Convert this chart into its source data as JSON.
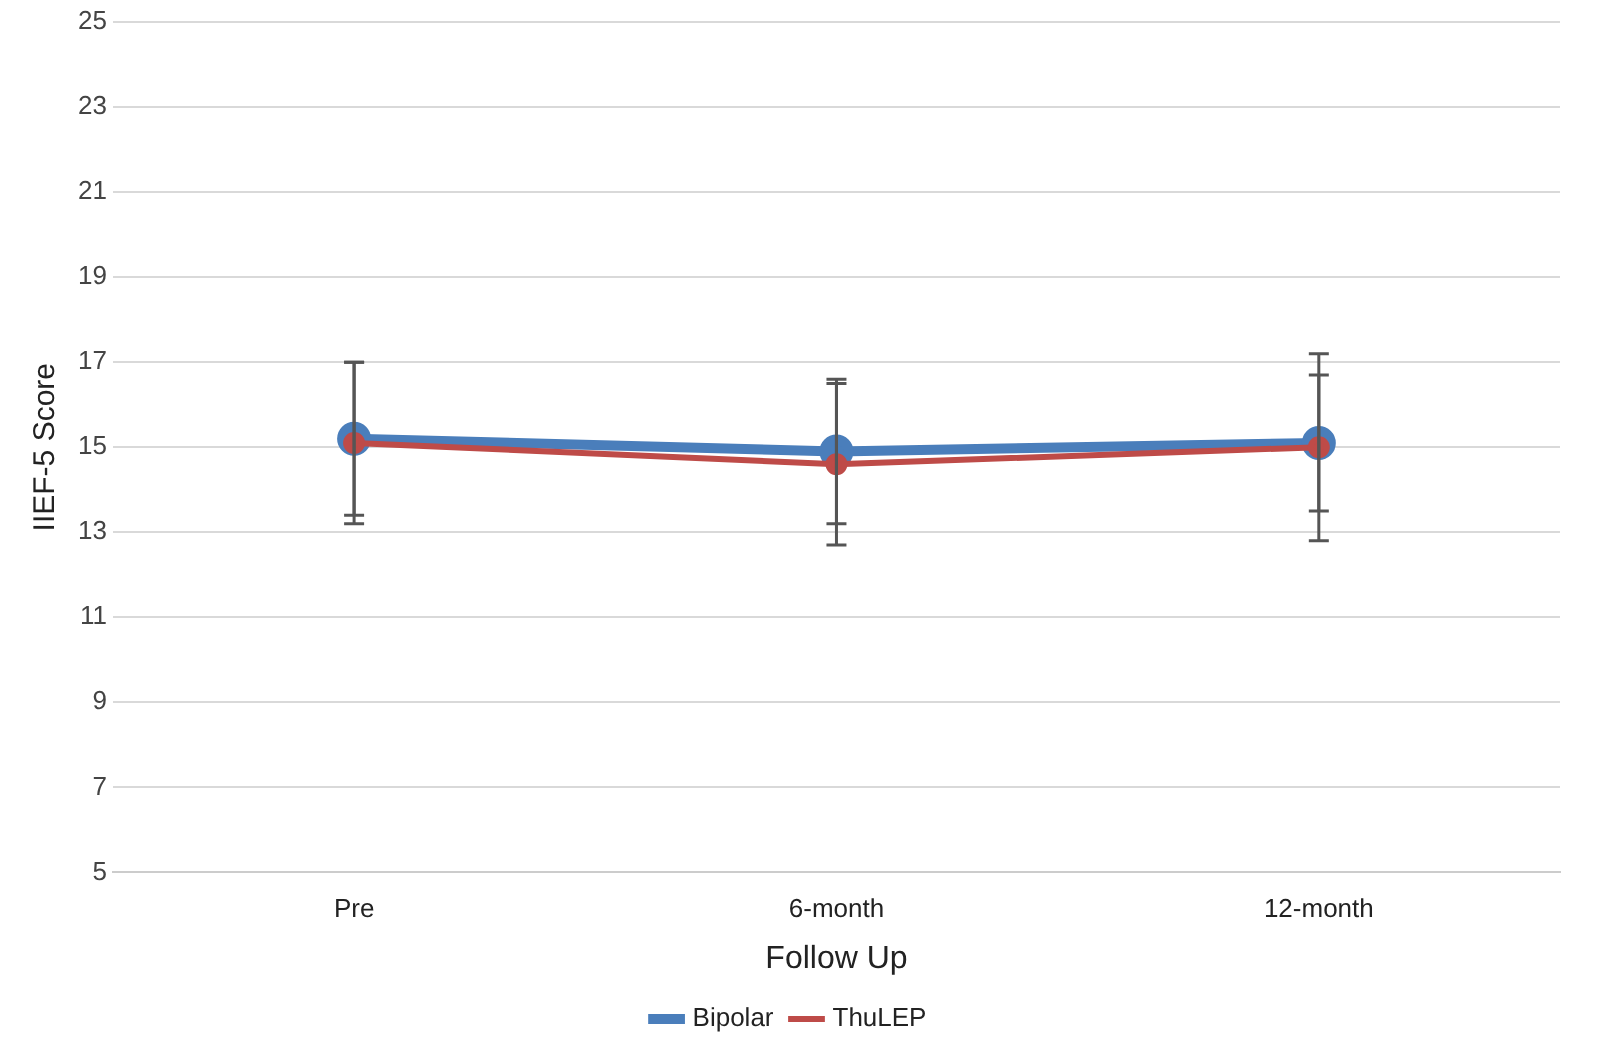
{
  "chart_data": {
    "type": "line",
    "xlabel": "Follow Up",
    "ylabel": "IIEF-5 Score",
    "categories": [
      "Pre",
      "6-month",
      "12-month"
    ],
    "series": [
      {
        "name": "Bipolar",
        "color": "#4a7ebb",
        "values": [
          15.2,
          14.9,
          15.1
        ],
        "errors": [
          1.8,
          1.7,
          1.6
        ]
      },
      {
        "name": "ThuLEP",
        "color": "#be4b48",
        "values": [
          15.1,
          14.6,
          15.0
        ],
        "errors": [
          1.9,
          1.9,
          2.2
        ]
      }
    ],
    "ylim": [
      5,
      25
    ],
    "yticks": [
      5,
      7,
      9,
      11,
      13,
      15,
      17,
      19,
      21,
      23,
      25
    ],
    "grid": "y",
    "legend": "bottom",
    "marker": "circle",
    "line_style": "solid"
  }
}
